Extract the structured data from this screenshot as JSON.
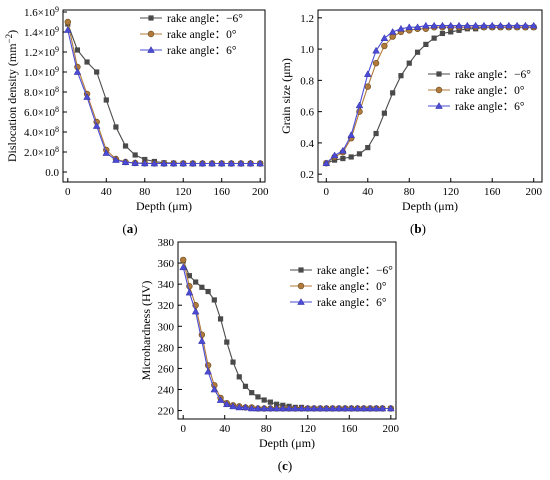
{
  "colors": {
    "neg6": "#4a4a4a",
    "zero": "#b07a3a",
    "six": "#4b4bd6"
  },
  "chart_data": [
    {
      "type": "line",
      "panel": "(a)",
      "panel_letter": "a",
      "xlabel": "Depth (μm)",
      "ylabel": "Dislocation density (mm",
      "ylabel_sup": "−2",
      "ylabel_close": ")",
      "xlim": [
        -5,
        205
      ],
      "ylim": [
        -100000000.0,
        1620000000.0
      ],
      "xticks": [
        0,
        40,
        80,
        120,
        160,
        200
      ],
      "yticks": [
        {
          "v": 0,
          "m": "0.0",
          "e": ""
        },
        {
          "v": 200000000.0,
          "m": "2.0×10",
          "e": "8"
        },
        {
          "v": 400000000.0,
          "m": "4.0×10",
          "e": "8"
        },
        {
          "v": 600000000.0,
          "m": "6.0×10",
          "e": "8"
        },
        {
          "v": 800000000.0,
          "m": "8.0×10",
          "e": "8"
        },
        {
          "v": 1000000000.0,
          "m": "1.0×10",
          "e": "9"
        },
        {
          "v": 1200000000.0,
          "m": "1.2×10",
          "e": "9"
        },
        {
          "v": 1400000000.0,
          "m": "1.4×10",
          "e": "9"
        },
        {
          "v": 1600000000.0,
          "m": "1.6×10",
          "e": "9"
        }
      ],
      "legend_position": "top-right",
      "x": [
        0,
        10,
        20,
        30,
        40,
        50,
        60,
        70,
        80,
        90,
        100,
        110,
        120,
        130,
        140,
        150,
        160,
        170,
        180,
        190,
        200
      ],
      "series": [
        {
          "name": "rake angle: −6°",
          "legend_name": "rake angle：−6°",
          "marker": "square",
          "color_key": "neg6",
          "values": [
            1480000000.0,
            1220000000.0,
            1100000000.0,
            1000000000.0,
            720000000.0,
            450000000.0,
            260000000.0,
            170000000.0,
            125000000.0,
            105000000.0,
            92000000.0,
            88000000.0,
            86000000.0,
            85000000.0,
            85000000.0,
            85000000.0,
            85000000.0,
            85000000.0,
            85000000.0,
            85000000.0,
            85000000.0
          ]
        },
        {
          "name": "rake angle: 0°",
          "legend_name": "rake angle：0°",
          "marker": "circle",
          "color_key": "zero",
          "values": [
            1500000000.0,
            1050000000.0,
            780000000.0,
            500000000.0,
            220000000.0,
            130000000.0,
            100000000.0,
            90000000.0,
            87000000.0,
            86000000.0,
            85000000.0,
            85000000.0,
            85000000.0,
            85000000.0,
            85000000.0,
            85000000.0,
            85000000.0,
            85000000.0,
            85000000.0,
            85000000.0,
            85000000.0
          ]
        },
        {
          "name": "rake angle: 6°",
          "legend_name": "rake angle：6°",
          "marker": "triangle",
          "color_key": "six",
          "values": [
            1420000000.0,
            1000000000.0,
            750000000.0,
            460000000.0,
            190000000.0,
            120000000.0,
            98000000.0,
            89000000.0,
            86000000.0,
            85000000.0,
            85000000.0,
            85000000.0,
            85000000.0,
            85000000.0,
            85000000.0,
            85000000.0,
            85000000.0,
            85000000.0,
            85000000.0,
            85000000.0,
            85000000.0
          ]
        }
      ]
    },
    {
      "type": "line",
      "panel": "(b)",
      "panel_letter": "b",
      "xlabel": "Depth (μm)",
      "ylabel": "Grain size (μm)",
      "xlim": [
        -8,
        208
      ],
      "ylim": [
        0.15,
        1.25
      ],
      "xticks": [
        0,
        40,
        80,
        120,
        160,
        200
      ],
      "yticks": [
        {
          "v": 0.2,
          "m": "0.2",
          "e": ""
        },
        {
          "v": 0.4,
          "m": "0.4",
          "e": ""
        },
        {
          "v": 0.6,
          "m": "0.6",
          "e": ""
        },
        {
          "v": 0.8,
          "m": "0.8",
          "e": ""
        },
        {
          "v": 1.0,
          "m": "1.0",
          "e": ""
        },
        {
          "v": 1.2,
          "m": "1.2",
          "e": ""
        }
      ],
      "legend_position": "center-right",
      "x": [
        0,
        8,
        16,
        24,
        32,
        40,
        48,
        56,
        64,
        72,
        80,
        88,
        96,
        104,
        112,
        120,
        128,
        136,
        144,
        152,
        160,
        168,
        176,
        184,
        192,
        200
      ],
      "series": [
        {
          "name": "rake angle: −6°",
          "legend_name": "rake angle：−6°",
          "marker": "square",
          "color_key": "neg6",
          "values": [
            0.27,
            0.29,
            0.3,
            0.31,
            0.33,
            0.37,
            0.46,
            0.59,
            0.72,
            0.83,
            0.91,
            0.98,
            1.03,
            1.07,
            1.1,
            1.11,
            1.12,
            1.13,
            1.13,
            1.14,
            1.14,
            1.14,
            1.14,
            1.14,
            1.14,
            1.14
          ]
        },
        {
          "name": "rake angle: 0°",
          "legend_name": "rake angle：0°",
          "marker": "circle",
          "color_key": "zero",
          "values": [
            0.27,
            0.31,
            0.34,
            0.43,
            0.6,
            0.76,
            0.91,
            1.02,
            1.08,
            1.11,
            1.12,
            1.13,
            1.13,
            1.14,
            1.14,
            1.14,
            1.14,
            1.14,
            1.14,
            1.14,
            1.14,
            1.14,
            1.14,
            1.14,
            1.14,
            1.14
          ]
        },
        {
          "name": "rake angle: 6°",
          "legend_name": "rake angle：6°",
          "marker": "triangle",
          "color_key": "six",
          "values": [
            0.27,
            0.32,
            0.35,
            0.45,
            0.64,
            0.84,
            0.99,
            1.07,
            1.11,
            1.13,
            1.14,
            1.14,
            1.15,
            1.15,
            1.15,
            1.15,
            1.15,
            1.15,
            1.15,
            1.15,
            1.15,
            1.15,
            1.15,
            1.15,
            1.15,
            1.15
          ]
        }
      ]
    },
    {
      "type": "line",
      "panel": "(c)",
      "panel_letter": "c",
      "xlabel": "Depth (μm)",
      "ylabel": "Microhardness (HV)",
      "xlim": [
        -5,
        205
      ],
      "ylim": [
        212,
        380
      ],
      "xticks": [
        0,
        40,
        80,
        120,
        160,
        200
      ],
      "yticks": [
        {
          "v": 220,
          "m": "220",
          "e": ""
        },
        {
          "v": 240,
          "m": "240",
          "e": ""
        },
        {
          "v": 260,
          "m": "260",
          "e": ""
        },
        {
          "v": 280,
          "m": "280",
          "e": ""
        },
        {
          "v": 300,
          "m": "300",
          "e": ""
        },
        {
          "v": 320,
          "m": "320",
          "e": ""
        },
        {
          "v": 340,
          "m": "340",
          "e": ""
        },
        {
          "v": 360,
          "m": "360",
          "e": ""
        },
        {
          "v": 380,
          "m": "380",
          "e": ""
        }
      ],
      "legend_position": "top-right",
      "x": [
        0,
        6,
        12,
        18,
        24,
        30,
        36,
        42,
        48,
        54,
        60,
        66,
        72,
        78,
        84,
        90,
        96,
        102,
        108,
        114,
        120,
        126,
        132,
        138,
        144,
        150,
        156,
        162,
        168,
        174,
        180,
        186,
        192,
        200
      ],
      "series": [
        {
          "name": "rake angle: −6°",
          "legend_name": "rake angle：−6°",
          "marker": "square",
          "color_key": "neg6",
          "values": [
            362,
            348,
            342,
            337,
            333,
            325,
            307,
            285,
            266,
            252,
            243,
            237,
            233,
            230,
            228,
            226,
            225,
            224,
            223,
            223,
            222,
            222,
            222,
            222,
            222,
            222,
            222,
            222,
            222,
            222,
            222,
            222,
            222,
            222
          ]
        },
        {
          "name": "rake angle: 0°",
          "legend_name": "rake angle：0°",
          "marker": "circle",
          "color_key": "zero",
          "values": [
            363,
            338,
            320,
            292,
            263,
            244,
            232,
            227,
            225,
            224,
            223,
            223,
            222,
            222,
            222,
            222,
            222,
            222,
            222,
            222,
            222,
            222,
            222,
            222,
            222,
            222,
            222,
            222,
            222,
            222,
            222,
            222,
            222,
            222
          ]
        },
        {
          "name": "rake angle: 6°",
          "legend_name": "rake angle：6°",
          "marker": "triangle",
          "color_key": "six",
          "values": [
            356,
            332,
            314,
            286,
            257,
            240,
            230,
            226,
            224,
            223,
            223,
            222,
            222,
            222,
            222,
            222,
            222,
            222,
            222,
            222,
            222,
            222,
            222,
            222,
            222,
            222,
            222,
            222,
            222,
            222,
            222,
            222,
            222,
            222
          ]
        }
      ]
    }
  ]
}
